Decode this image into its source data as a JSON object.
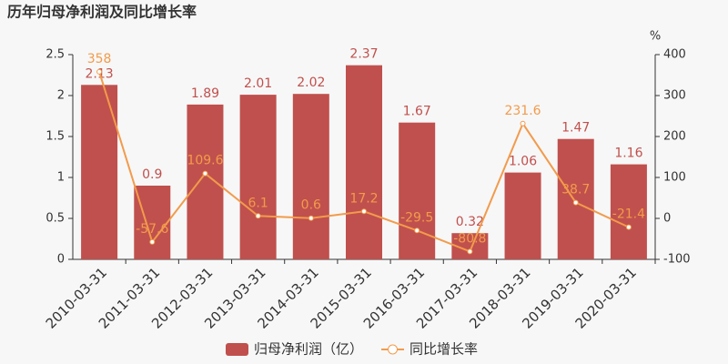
{
  "chart_data": {
    "type": "bar",
    "title": "历年归母净利润及同比增长率",
    "y2label": "%",
    "categories": [
      "2010-03-31",
      "2011-03-31",
      "2012-03-31",
      "2013-03-31",
      "2014-03-31",
      "2015-03-31",
      "2016-03-31",
      "2017-03-31",
      "2018-03-31",
      "2019-03-31",
      "2020-03-31"
    ],
    "series": [
      {
        "name": "归母净利润（亿）",
        "color": "#c0504d",
        "values": [
          2.13,
          0.9,
          1.89,
          2.01,
          2.02,
          2.37,
          1.67,
          0.32,
          1.06,
          1.47,
          1.16
        ]
      },
      {
        "name": "同比增长率",
        "color": "#f29b4c",
        "type": "line",
        "axis": "y2",
        "values": [
          358,
          -57.6,
          109.6,
          6.1,
          0.6,
          17.2,
          -29.5,
          -80.8,
          231.6,
          38.7,
          -21.4
        ]
      }
    ],
    "ylim": [
      0,
      2.5
    ],
    "yticks": [
      0,
      0.5,
      1,
      1.5,
      2,
      2.5
    ],
    "y2lim": [
      -100,
      400
    ],
    "y2ticks": [
      -100,
      0,
      100,
      200,
      300,
      400
    ],
    "grid": false,
    "legend": "bottom"
  }
}
